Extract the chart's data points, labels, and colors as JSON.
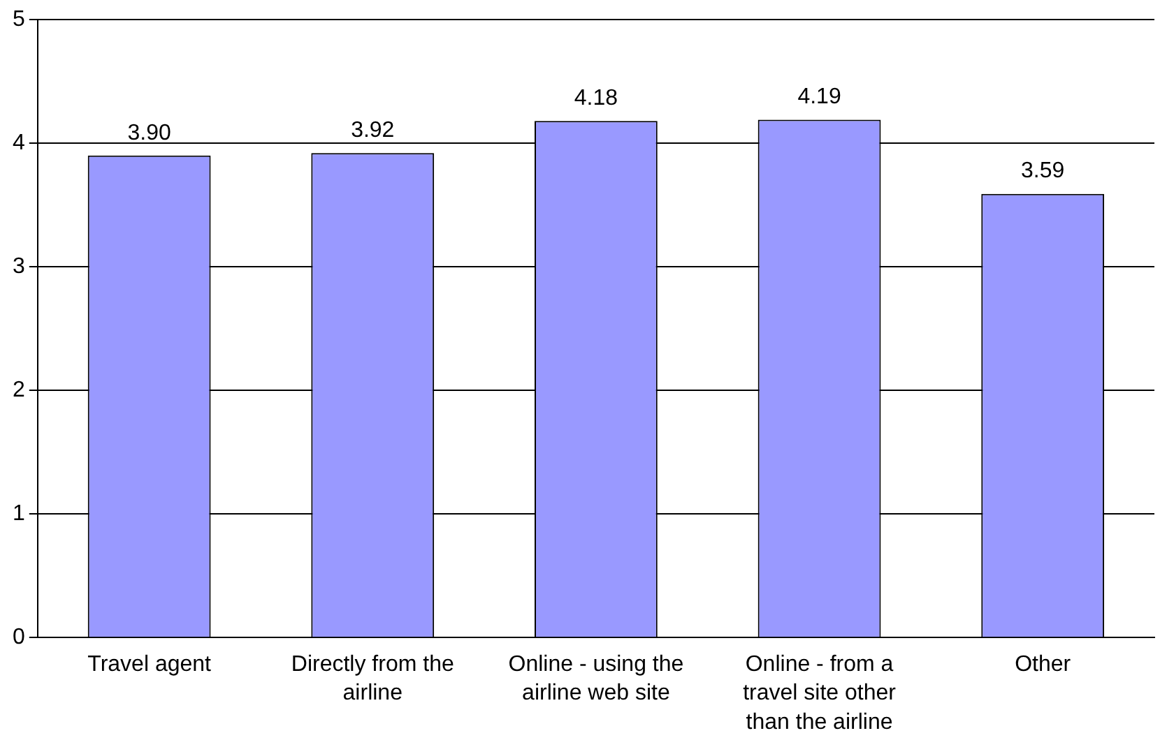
{
  "chart_data": {
    "type": "bar",
    "categories": [
      "Travel agent",
      "Directly from the airline",
      "Online - using the airline web site",
      "Online - from a travel site other than the airline",
      "Other"
    ],
    "values": [
      3.9,
      3.92,
      4.18,
      4.19,
      3.59
    ],
    "value_labels": [
      "3.90",
      "3.92",
      "4.18",
      "4.19",
      "3.59"
    ],
    "color": "#9999ff",
    "ylim": [
      0,
      5
    ],
    "yticks": [
      0,
      1,
      2,
      3,
      4,
      5
    ],
    "grid": "y",
    "legend": false
  }
}
